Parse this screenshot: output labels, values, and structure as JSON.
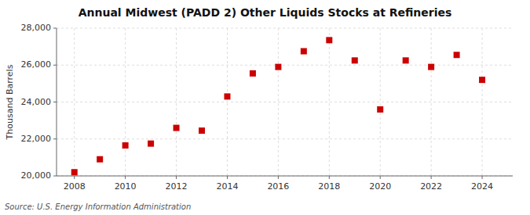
{
  "chart_data": {
    "type": "scatter",
    "title": "Annual Midwest (PADD 2) Other Liquids Stocks at Refineries",
    "ylabel": "Thousand Barrels",
    "annotations": [
      "Source: U.S. Energy Information Administration"
    ],
    "x": [
      2008,
      2009,
      2010,
      2011,
      2012,
      2013,
      2014,
      2015,
      2016,
      2017,
      2018,
      2019,
      2020,
      2021,
      2022,
      2023,
      2024
    ],
    "values": [
      20200,
      20900,
      21650,
      21750,
      22600,
      22450,
      24300,
      25550,
      25900,
      26750,
      27350,
      26250,
      23600,
      26250,
      25900,
      26550,
      25200
    ],
    "color": "#cc0000",
    "marker": "square",
    "xlim": [
      2007.3,
      2025.2
    ],
    "ylim": [
      20000,
      28000
    ],
    "xticks": [
      2008,
      2010,
      2012,
      2014,
      2016,
      2018,
      2020,
      2022,
      2024
    ],
    "yticks": [
      {
        "value": 20000,
        "label": "20,000"
      },
      {
        "value": 22000,
        "label": "22,000"
      },
      {
        "value": 24000,
        "label": "24,000"
      },
      {
        "value": 26000,
        "label": "26,000"
      },
      {
        "value": 28000,
        "label": "28,000"
      }
    ],
    "grid": true
  }
}
